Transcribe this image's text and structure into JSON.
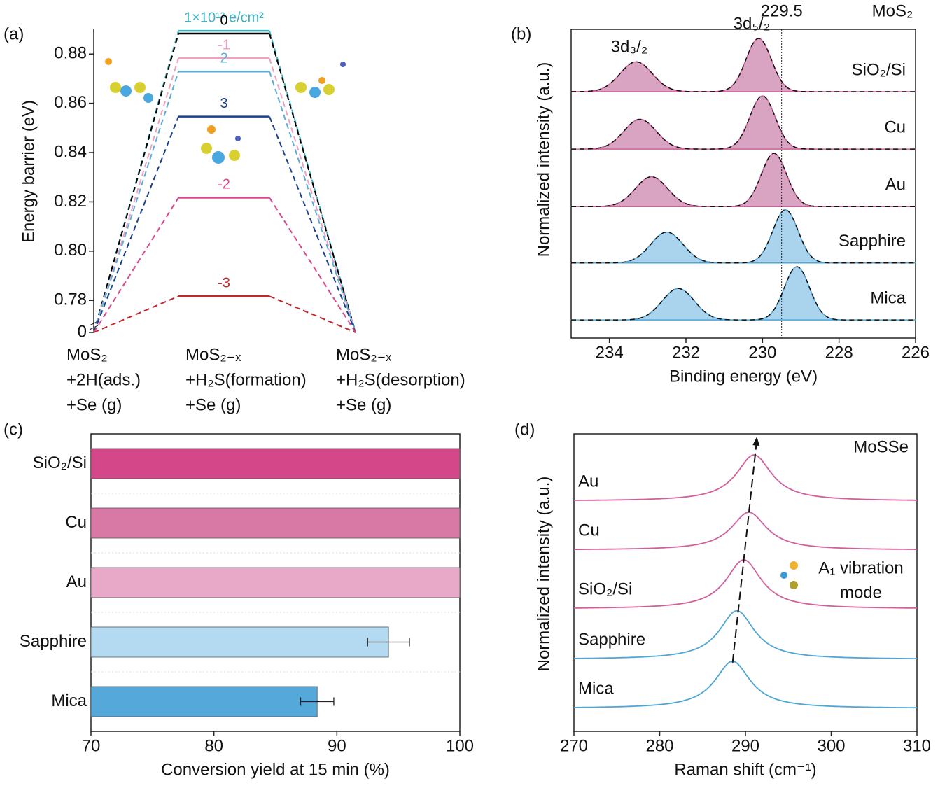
{
  "chart_data": [
    {
      "type": "energy-profile",
      "panel": "(a)",
      "ylabel": "Energy barrier (eV)",
      "categories": [
        [
          "MoS₂",
          "+2H(ads.)",
          "+Se (g)"
        ],
        [
          "MoS₂₋ₓ",
          "+H₂S(formation)",
          "+Se (g)"
        ],
        [
          "MoS₂₋ₓ",
          "+H₂S(desorption)",
          "+Se (g)"
        ]
      ],
      "series": [
        {
          "name": "1×10¹³ e/cm²",
          "color": "#3bb3c3",
          "values": [
            0,
            0.8894,
            0
          ]
        },
        {
          "name": "0",
          "color": "#000000",
          "values": [
            0,
            0.8883,
            0
          ]
        },
        {
          "name": "-1",
          "color": "#f0a0c0",
          "values": [
            0,
            0.8783,
            0
          ]
        },
        {
          "name": "2",
          "color": "#5aaed8",
          "values": [
            0,
            0.8729,
            0
          ]
        },
        {
          "name": "3",
          "color": "#1a3f8c",
          "values": [
            0,
            0.8546,
            0
          ]
        },
        {
          "name": "-2",
          "color": "#d9488a",
          "values": [
            0,
            0.8217,
            0
          ]
        },
        {
          "name": "-3",
          "color": "#c0282e",
          "values": [
            0,
            0.7817,
            0
          ]
        }
      ],
      "ylim": [
        0.767,
        0.89
      ],
      "yticks": [
        0,
        0.78,
        {
          "value": 0.8,
          "label": "0.80"
        },
        0.82,
        0.84,
        0.86,
        0.88
      ],
      "axis_break": true
    },
    {
      "type": "xps-stack",
      "panel": "(b)",
      "title": "MoS₂",
      "xlabel": "Binding energy (eV)",
      "ylabel": "Normalized intensity (a.u.)",
      "xlim": [
        235,
        226
      ],
      "xticks": [
        234,
        232,
        230,
        228,
        226
      ],
      "ylim": [
        0,
        5.8
      ],
      "reference_line": {
        "x": 229.5,
        "label": "229.5"
      },
      "peak_labels": [
        "3d₃/₂",
        "3d₅/₂"
      ],
      "peak_widths": [
        0.42,
        0.33
      ],
      "series": [
        {
          "name": "SiO₂/Si",
          "color": "#d9a3c2",
          "line_color": "#d0609a",
          "baseline": 4.63,
          "x": [
            233.3,
            230.1
          ],
          "values": [
            0.56,
            1.0
          ]
        },
        {
          "name": "Cu",
          "color": "#d9a3c2",
          "line_color": "#d0609a",
          "baseline": 3.55,
          "x": [
            233.2,
            230.0
          ],
          "values": [
            0.56,
            1.0
          ]
        },
        {
          "name": "Au",
          "color": "#d9a3c2",
          "line_color": "#d0609a",
          "baseline": 2.47,
          "x": [
            232.9,
            229.7
          ],
          "values": [
            0.56,
            1.0
          ]
        },
        {
          "name": "Sapphire",
          "color": "#aad3ee",
          "line_color": "#4da6d6",
          "baseline": 1.41,
          "x": [
            232.5,
            229.4
          ],
          "values": [
            0.58,
            1.0
          ]
        },
        {
          "name": "Mica",
          "color": "#aad3ee",
          "line_color": "#4da6d6",
          "baseline": 0.34,
          "x": [
            232.2,
            229.1
          ],
          "values": [
            0.59,
            1.0
          ]
        }
      ]
    },
    {
      "type": "bar",
      "orientation": "horizontal",
      "panel": "(c)",
      "xlabel": "Conversion yield at 15 min (%)",
      "categories": [
        "SiO₂/Si",
        "Cu",
        "Au",
        "Sapphire",
        "Mica"
      ],
      "values": [
        100,
        100,
        100,
        94.2,
        88.4
      ],
      "errors": [
        null,
        null,
        null,
        1.7,
        1.35
      ],
      "colors": [
        "#d4488a",
        "#d878a5",
        "#e8a9c9",
        "#b3daf0",
        "#55a8da"
      ],
      "xlim": [
        70,
        100
      ],
      "xticks": [
        70,
        80,
        90,
        100
      ],
      "grid": true
    },
    {
      "type": "raman-stack",
      "panel": "(d)",
      "title": "MoSSe",
      "annotation": [
        "A₁ vibration",
        "mode"
      ],
      "xlabel": "Raman shift (cm⁻¹)",
      "ylabel": "Normalized intensity (a.u.)",
      "xlim": [
        270,
        310
      ],
      "xticks": [
        270,
        280,
        290,
        300,
        310
      ],
      "ylim": [
        0,
        6.07
      ],
      "peak_width": 2.5,
      "series": [
        {
          "name": "Au",
          "color": "#d0609a",
          "baseline": 4.7,
          "peak_x": 291.0,
          "height": 0.94
        },
        {
          "name": "Cu",
          "color": "#d0609a",
          "baseline": 3.7,
          "peak_x": 290.4,
          "height": 0.77
        },
        {
          "name": "SiO₂/Si",
          "color": "#d0609a",
          "baseline": 2.5,
          "peak_x": 289.8,
          "height": 1.0
        },
        {
          "name": "Sapphire",
          "color": "#4da6d6",
          "baseline": 1.47,
          "peak_x": 289.0,
          "height": 0.99
        },
        {
          "name": "Mica",
          "color": "#4da6d6",
          "baseline": 0.47,
          "peak_x": 288.5,
          "height": 0.96
        }
      ]
    }
  ]
}
